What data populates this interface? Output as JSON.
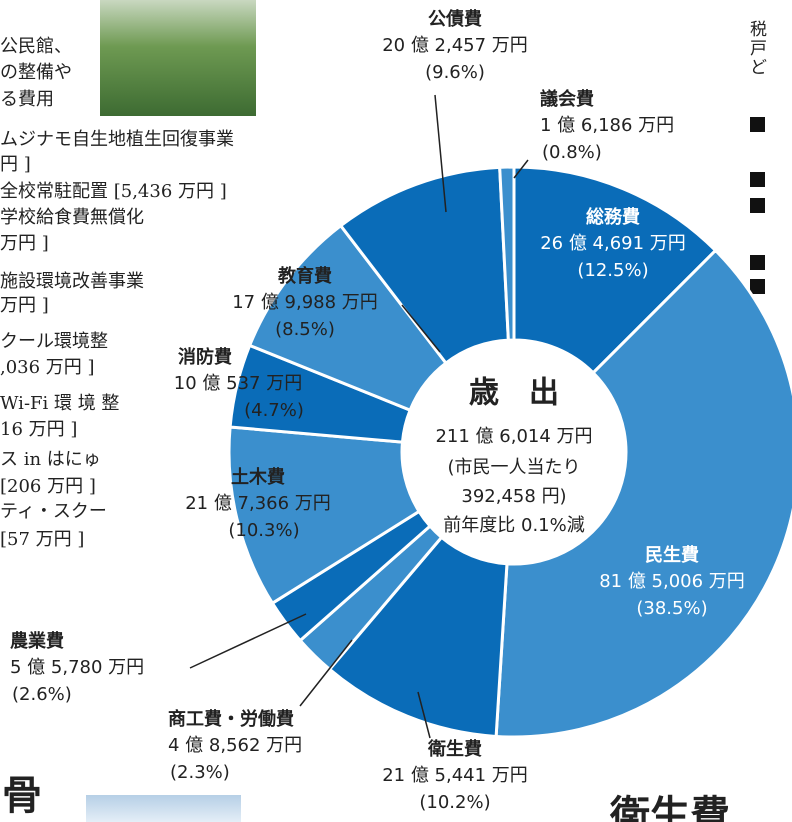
{
  "chart_data": {
    "type": "donut",
    "center_title": "歳　出",
    "center_lines": [
      "211 億 6,014 万円",
      "(市民一人当たり",
      "392,458 円)",
      "前年度比 0.1%減"
    ],
    "categories": [
      "総務費",
      "民生費",
      "衛生費",
      "商工費・労働費",
      "農業費",
      "土木費",
      "消防費",
      "教育費",
      "公債費",
      "議会費"
    ],
    "amounts": [
      "26 億 4,691 万円",
      "81 億 5,006 万円",
      "21 億 5,441 万円",
      "4 億 8,562 万円",
      "5 億 5,780 万円",
      "21 億 7,366 万円",
      "10 億 537 万円",
      "17 億 9,988 万円",
      "20 億 2,457 万円",
      "1 億 6,186 万円"
    ],
    "values": [
      12.5,
      38.5,
      10.2,
      2.3,
      2.6,
      10.3,
      4.7,
      8.5,
      9.6,
      0.8
    ],
    "value_labels": [
      "(12.5%)",
      "(38.5%)",
      "(10.2%)",
      "(2.3%)",
      "(2.6%)",
      "(10.3%)",
      "(4.7%)",
      "(8.5%)",
      "(9.6%)",
      "(0.8%)"
    ],
    "colors": [
      "#0a6cb8",
      "#3b8fcd",
      "#0a6cb8",
      "#3b8fcd",
      "#0a6cb8",
      "#3b8fcd",
      "#0a6cb8",
      "#3b8fcd",
      "#0a6cb8",
      "#3b8fcd"
    ]
  },
  "page_text": {
    "left": [
      "公民館、",
      "の整備や",
      "る費用",
      "ムジナモ自生地植生回復事業",
      "円 ]",
      "全校常駐配置 [5,436 万円 ]",
      "学校給食費無償化",
      "万円 ]",
      "施設環境改善事業",
      "万円 ]",
      "クール環境整",
      ",036 万円 ]",
      "Wi-Fi 環 境 整",
      "16 万円 ]",
      "ス in はにゅ",
      "[206 万円 ]",
      "ティ・スクー",
      "[57 万円 ]"
    ],
    "right": [
      "税",
      "戸",
      "ど"
    ],
    "heading_left": "骨",
    "heading_right": "衛生費"
  }
}
